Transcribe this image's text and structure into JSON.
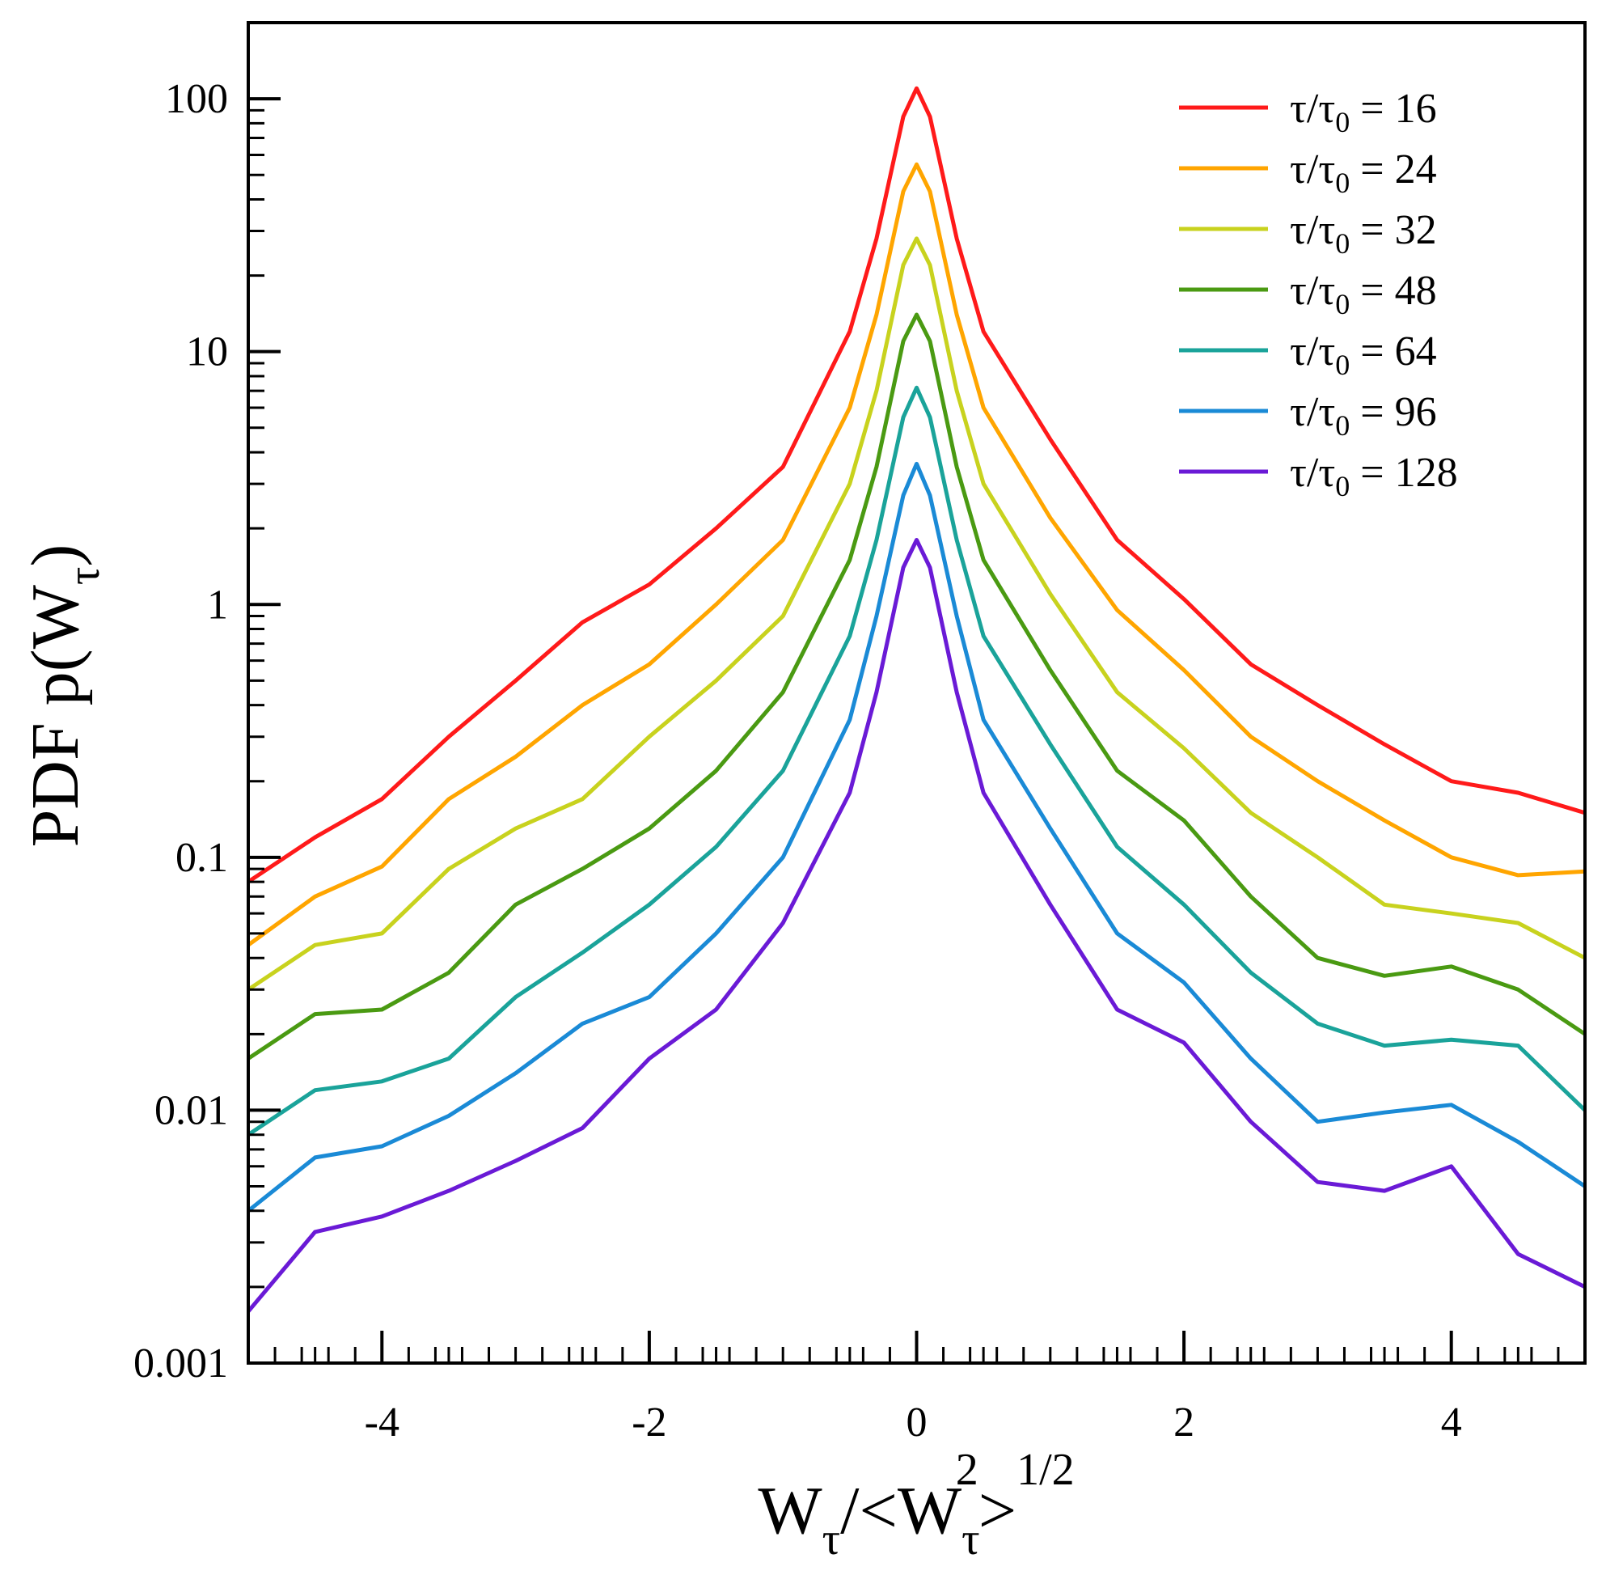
{
  "chart_data": {
    "type": "line",
    "title": "",
    "xlabel": {
      "base": "W",
      "sub": "τ",
      "mid": "/<W",
      "sub2": "τ",
      "sup2": "2",
      "tail": ">",
      "sup_tail": "1/2"
    },
    "ylabel": {
      "base": "PDF p(W",
      "sub": "τ",
      "tail": ")"
    },
    "xlim": [
      -5,
      5
    ],
    "ylim": [
      0.001,
      200
    ],
    "yscale": "log",
    "xticks": [
      -4,
      -2,
      0,
      2,
      4
    ],
    "xtick_labels": [
      "-4",
      "-2",
      "0",
      "2",
      "4"
    ],
    "yticks": [
      0.001,
      0.01,
      0.1,
      1,
      10,
      100
    ],
    "ytick_labels": [
      "0.001",
      "0.01",
      "0.1",
      "1",
      "10",
      "100"
    ],
    "grid": false,
    "legend_position": "top-right",
    "x": [
      -5,
      -4.5,
      -4,
      -3.5,
      -3,
      -2.5,
      -2,
      -1.5,
      -1,
      -0.5,
      -0.3,
      -0.1,
      0,
      0.1,
      0.3,
      0.5,
      1,
      1.5,
      2,
      2.5,
      3,
      3.5,
      4,
      4.5,
      5
    ],
    "series": [
      {
        "name": "16",
        "label_prefix": "τ/τ",
        "label_sub": "0",
        "label_suffix": " = 16",
        "color": "#ff1a1a",
        "values": [
          0.08,
          0.12,
          0.17,
          0.3,
          0.5,
          0.85,
          1.2,
          2.0,
          3.5,
          12,
          28,
          85,
          110,
          85,
          28,
          12,
          4.5,
          1.8,
          1.05,
          0.58,
          0.4,
          0.28,
          0.2,
          0.18,
          0.15
        ]
      },
      {
        "name": "24",
        "label_prefix": "τ/τ",
        "label_sub": "0",
        "label_suffix": " = 24",
        "color": "#ffa500",
        "values": [
          0.045,
          0.07,
          0.092,
          0.17,
          0.25,
          0.4,
          0.58,
          1.0,
          1.8,
          6,
          14,
          43,
          55,
          43,
          14,
          6,
          2.2,
          0.95,
          0.55,
          0.3,
          0.2,
          0.14,
          0.1,
          0.085,
          0.088
        ]
      },
      {
        "name": "32",
        "label_prefix": "τ/τ",
        "label_sub": "0",
        "label_suffix": " = 32",
        "color": "#c8d21e",
        "values": [
          0.03,
          0.045,
          0.05,
          0.09,
          0.13,
          0.17,
          0.3,
          0.5,
          0.9,
          3,
          7,
          22,
          28,
          22,
          7,
          3,
          1.1,
          0.45,
          0.27,
          0.15,
          0.1,
          0.065,
          0.06,
          0.055,
          0.04
        ]
      },
      {
        "name": "48",
        "label_prefix": "τ/τ",
        "label_sub": "0",
        "label_suffix": " = 48",
        "color": "#4a9a12",
        "values": [
          0.016,
          0.024,
          0.025,
          0.035,
          0.065,
          0.09,
          0.13,
          0.22,
          0.45,
          1.5,
          3.5,
          11,
          14,
          11,
          3.5,
          1.5,
          0.55,
          0.22,
          0.14,
          0.07,
          0.04,
          0.034,
          0.037,
          0.03,
          0.02
        ]
      },
      {
        "name": "64",
        "label_prefix": "τ/τ",
        "label_sub": "0",
        "label_suffix": " = 64",
        "color": "#1aa39a",
        "values": [
          0.008,
          0.012,
          0.013,
          0.016,
          0.028,
          0.042,
          0.065,
          0.11,
          0.22,
          0.75,
          1.8,
          5.5,
          7.2,
          5.5,
          1.8,
          0.75,
          0.28,
          0.11,
          0.065,
          0.035,
          0.022,
          0.018,
          0.019,
          0.018,
          0.01
        ]
      },
      {
        "name": "96",
        "label_prefix": "τ/τ",
        "label_sub": "0",
        "label_suffix": " = 96",
        "color": "#1a8ad6",
        "values": [
          0.004,
          0.0065,
          0.0072,
          0.0095,
          0.014,
          0.022,
          0.028,
          0.05,
          0.1,
          0.35,
          0.9,
          2.7,
          3.6,
          2.7,
          0.9,
          0.35,
          0.13,
          0.05,
          0.032,
          0.016,
          0.009,
          0.0098,
          0.0105,
          0.0075,
          0.005
        ]
      },
      {
        "name": "128",
        "label_prefix": "τ/τ",
        "label_sub": "0",
        "label_suffix": " = 128",
        "color": "#6a1ad6",
        "values": [
          0.0016,
          0.0033,
          0.0038,
          0.0048,
          0.0063,
          0.0085,
          0.016,
          0.025,
          0.055,
          0.18,
          0.45,
          1.4,
          1.8,
          1.4,
          0.45,
          0.18,
          0.065,
          0.025,
          0.0185,
          0.009,
          0.0052,
          0.0048,
          0.006,
          0.0027,
          0.002
        ]
      }
    ]
  }
}
